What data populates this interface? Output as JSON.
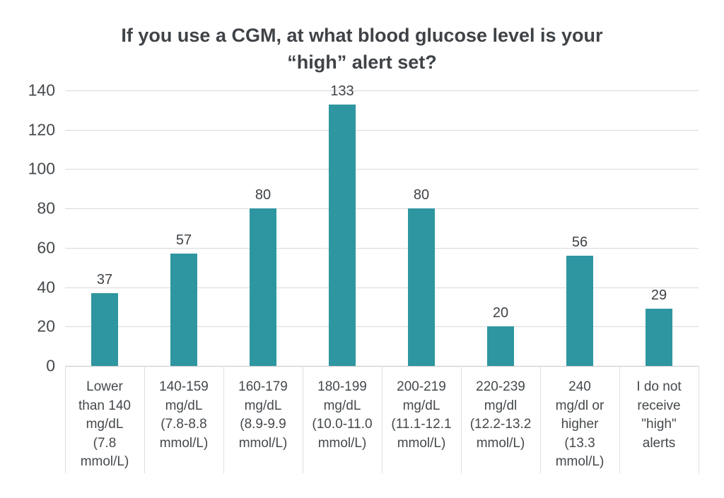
{
  "chart_data": {
    "type": "bar",
    "title": "If you use a CGM, at what blood glucose level is your\n“high” alert set?",
    "categories": [
      "Lower than 140 mg/dL (7.8 mmol/L)",
      "140-159 mg/dL (7.8-8.8 mmol/L)",
      "160-179 mg/dL (8.9-9.9 mmol/L)",
      "180-199 mg/dL (10.0-11.0 mmol/L)",
      "200-219 mg/dL (11.1-12.1 mmol/L)",
      "220-239 mg/dl (12.2-13.2 mmol/L)",
      "240 mg/dl or higher (13.3 mmol/L)",
      "I do not receive \"high\" alerts"
    ],
    "category_labels_wrapped": [
      "Lower\nthan 140\nmg/dL\n(7.8\nmmol/L)",
      "140-159\nmg/dL\n(7.8-8.8\nmmol/L)",
      "160-179\nmg/dL\n(8.9-9.9\nmmol/L)",
      "180-199\nmg/dL\n(10.0-11.0\nmmol/L)",
      "200-219\nmg/dL\n(11.1-12.1\nmmol/L)",
      "220-239\nmg/dl\n(12.2-13.2\nmmol/L)",
      "240\nmg/dl or\nhigher\n(13.3\nmmol/L)",
      "I do not\nreceive\n\"high\"\nalerts"
    ],
    "values": [
      37,
      57,
      80,
      133,
      80,
      20,
      56,
      29
    ],
    "value_labels": [
      "37",
      "57",
      "80",
      "133",
      "80",
      "20",
      "56",
      "29"
    ],
    "ylim": [
      0,
      140
    ],
    "yticks": [
      0,
      20,
      40,
      60,
      80,
      100,
      120,
      140
    ],
    "xlabel": "",
    "ylabel": "",
    "grid": true,
    "legend": "none",
    "bar_color": "#2e96a0",
    "title_color": "#3f4347",
    "axis_text_color": "#45494c",
    "grid_color": "#d9d9d9"
  }
}
